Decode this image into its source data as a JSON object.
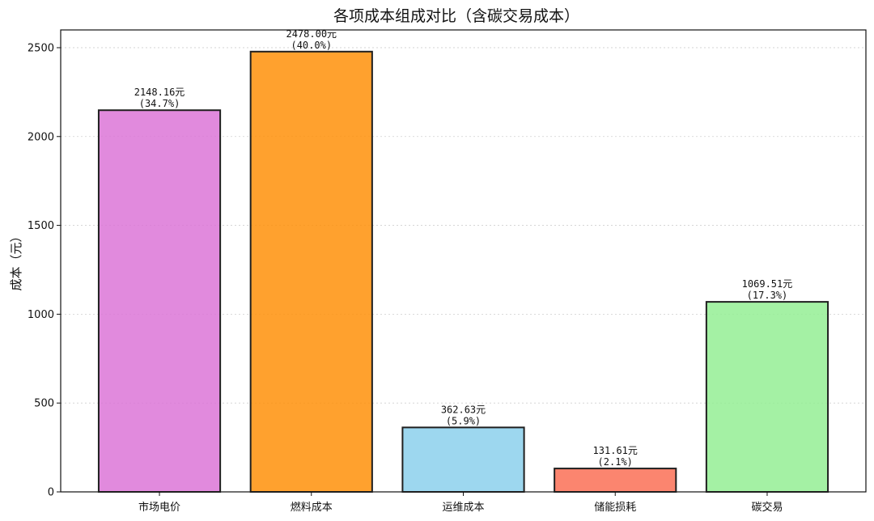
{
  "chart_data": {
    "type": "bar",
    "title": "各项成本组成对比（含碳交易成本）",
    "xlabel": "",
    "ylabel": "成本（元）",
    "categories": [
      "市场电价",
      "燃料成本",
      "运维成本",
      "储能损耗",
      "碳交易"
    ],
    "values": [
      2148.16,
      2478.0,
      362.63,
      131.61,
      1069.51
    ],
    "value_labels": [
      "2148.16元",
      "2478.00元",
      "362.63元",
      "131.61元",
      "1069.51元"
    ],
    "percent_labels": [
      "(34.7%)",
      "(40.0%)",
      "(5.9%)",
      "(2.1%)",
      "(17.3%)"
    ],
    "colors": [
      "#DA70D6",
      "#FF8C00",
      "#87CEEB",
      "#FA6A4F",
      "#90EE90"
    ],
    "ylim": [
      0,
      2600
    ],
    "yticks": [
      0,
      500,
      1000,
      1500,
      2000,
      2500
    ],
    "grid": true,
    "legend": "none"
  }
}
